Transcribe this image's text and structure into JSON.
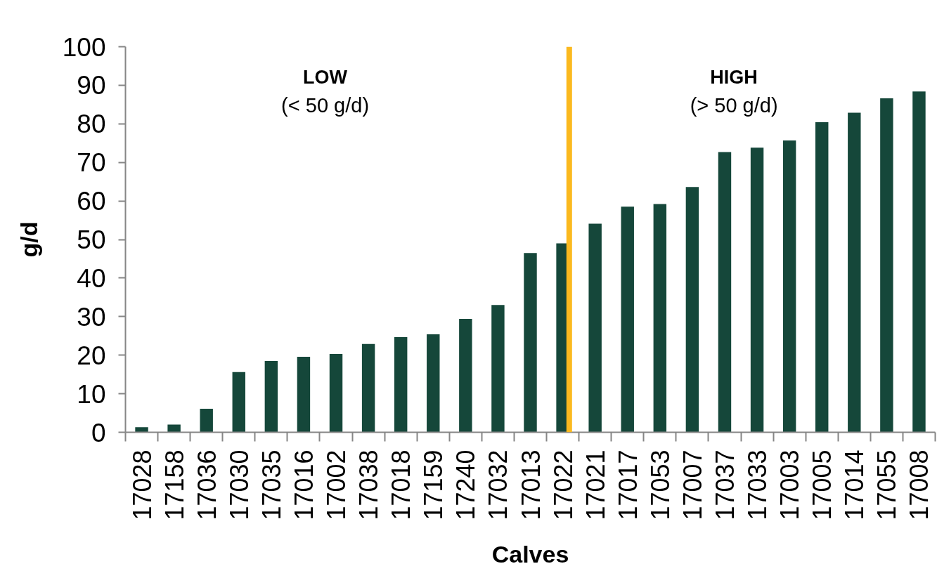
{
  "chart_data": {
    "type": "bar",
    "xlabel": "Calves",
    "ylabel": "g/d",
    "categories": [
      "17028",
      "17158",
      "17036",
      "17030",
      "17035",
      "17016",
      "17002",
      "17038",
      "17018",
      "17159",
      "17240",
      "17032",
      "17013",
      "17022",
      "17021",
      "17017",
      "17053",
      "17007",
      "17037",
      "17033",
      "17003",
      "17005",
      "17014",
      "17055",
      "17008"
    ],
    "values": [
      1.3,
      2.0,
      6.1,
      15.6,
      18.5,
      19.6,
      20.3,
      22.9,
      24.7,
      25.4,
      29.4,
      33.0,
      46.5,
      49.0,
      54.1,
      58.5,
      59.2,
      63.6,
      72.7,
      73.8,
      75.7,
      80.4,
      82.9,
      86.6,
      88.4
    ],
    "color": "#15473a",
    "ylim": [
      0,
      100
    ],
    "yticks": [
      0,
      10,
      20,
      30,
      40,
      50,
      60,
      70,
      80,
      90,
      100
    ],
    "ref_lines": [
      {
        "axis": "x",
        "value": "17022",
        "color": "#fbb91f"
      }
    ],
    "annotations": [
      "LOW\n(< 50 g/d)",
      "HIGH\n(> 50 g/d)"
    ]
  }
}
